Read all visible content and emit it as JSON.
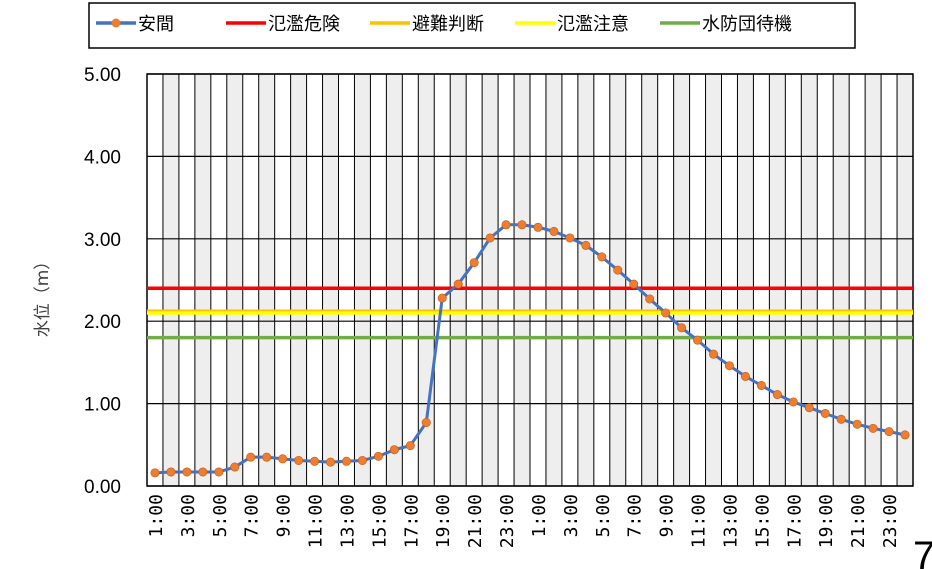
{
  "chart_data": {
    "type": "line",
    "title": "",
    "xlabel": "",
    "ylabel": "水位（m）",
    "ylim": [
      0,
      5
    ],
    "yticks": [
      "0.00",
      "1.00",
      "2.00",
      "3.00",
      "4.00",
      "5.00"
    ],
    "grid": true,
    "legend_position": "top",
    "x": [
      "1:00",
      "2:00",
      "3:00",
      "4:00",
      "5:00",
      "6:00",
      "7:00",
      "8:00",
      "9:00",
      "10:00",
      "11:00",
      "12:00",
      "13:00",
      "14:00",
      "15:00",
      "16:00",
      "17:00",
      "18:00",
      "19:00",
      "20:00",
      "21:00",
      "22:00",
      "23:00",
      "0:00",
      "1:00",
      "2:00",
      "3:00",
      "4:00",
      "5:00",
      "6:00",
      "7:00",
      "8:00",
      "9:00",
      "10:00",
      "11:00",
      "12:00",
      "13:00",
      "14:00",
      "15:00",
      "16:00",
      "17:00",
      "18:00",
      "19:00",
      "20:00",
      "21:00",
      "22:00",
      "23:00",
      "0:00"
    ],
    "x_tick_labels_shown": [
      "1:00",
      "3:00",
      "5:00",
      "7:00",
      "9:00",
      "11:00",
      "13:00",
      "15:00",
      "17:00",
      "19:00",
      "21:00",
      "23:00",
      "1:00",
      "3:00",
      "5:00",
      "7:00",
      "9:00",
      "11:00",
      "13:00",
      "15:00",
      "17:00",
      "19:00",
      "21:00",
      "23:00"
    ],
    "series": [
      {
        "name": "安間",
        "color": "#4472c4",
        "marker_color": "#ed7d31",
        "values": [
          0.16,
          0.17,
          0.17,
          0.17,
          0.17,
          0.23,
          0.35,
          0.35,
          0.33,
          0.31,
          0.3,
          0.29,
          0.3,
          0.31,
          0.36,
          0.44,
          0.49,
          0.77,
          2.28,
          2.45,
          2.71,
          3.01,
          3.17,
          3.17,
          3.14,
          3.09,
          3.01,
          2.92,
          2.78,
          2.62,
          2.45,
          2.27,
          2.1,
          1.92,
          1.77,
          1.6,
          1.46,
          1.33,
          1.22,
          1.11,
          1.02,
          0.95,
          0.88,
          0.81,
          0.75,
          0.7,
          0.66,
          0.62
        ]
      },
      {
        "name": "氾濫危険",
        "color": "#ff0000",
        "level": 2.4
      },
      {
        "name": "避難判断",
        "color": "#ffc000",
        "level": 2.12
      },
      {
        "name": "氾濫注意",
        "color": "#ffff00",
        "level": 2.1
      },
      {
        "name": "水防団待機",
        "color": "#70ad47",
        "level": 1.8
      }
    ]
  },
  "page_number_fragment": "7"
}
